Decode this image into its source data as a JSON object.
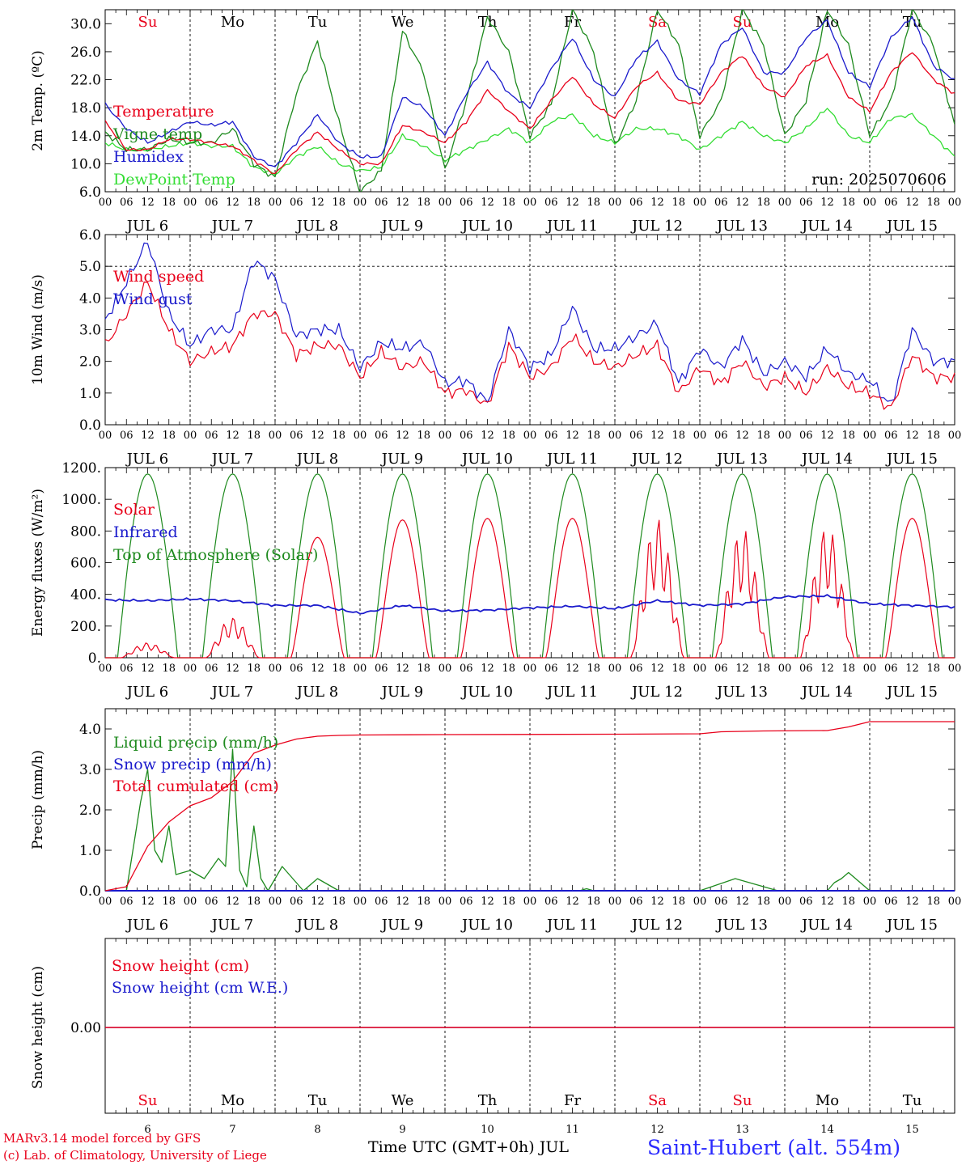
{
  "meta": {
    "run_label": "run: 2025070606",
    "footer_left_1": "MARv3.14 model forced by GFS",
    "footer_left_2": "(c) Lab. of Climatology, University of Liege",
    "footer_mid": "Time UTC (GMT+0h) JUL",
    "station": "Saint-Hubert (alt. 554m)"
  },
  "days": [
    {
      "abbr": "Su",
      "date": "JUL  6",
      "num": "6",
      "weekend": true
    },
    {
      "abbr": "Mo",
      "date": "JUL  7",
      "num": "7",
      "weekend": false
    },
    {
      "abbr": "Tu",
      "date": "JUL  8",
      "num": "8",
      "weekend": false
    },
    {
      "abbr": "We",
      "date": "JUL  9",
      "num": "9",
      "weekend": false
    },
    {
      "abbr": "Th",
      "date": "JUL 10",
      "num": "10",
      "weekend": false
    },
    {
      "abbr": "Fr",
      "date": "JUL 11",
      "num": "11",
      "weekend": false
    },
    {
      "abbr": "Sa",
      "date": "JUL 12",
      "num": "12",
      "weekend": true
    },
    {
      "abbr": "Su",
      "date": "JUL 13",
      "num": "13",
      "weekend": true
    },
    {
      "abbr": "Mo",
      "date": "JUL 14",
      "num": "14",
      "weekend": false
    },
    {
      "abbr": "Tu",
      "date": "JUL 15",
      "num": "15",
      "weekend": false
    }
  ],
  "hour_labels": [
    "00",
    "06",
    "12",
    "18"
  ],
  "colors": {
    "red": "#e8001a",
    "blue": "#1a1acc",
    "darkgreen": "#1e8a1e",
    "lightgreen": "#33dd33",
    "weekend": "#e8001a"
  },
  "chart_data": [
    {
      "type": "line",
      "ylabel": "2m Temp. (ºC)",
      "ylim": [
        6,
        32
      ],
      "yticks": [
        "6.0",
        "10.0",
        "14.0",
        "18.0",
        "22.0",
        "26.0",
        "30.0"
      ],
      "x_unit": "hours since JUL 6 00 UTC",
      "series": [
        {
          "name": "Temperature",
          "color": "red",
          "x": [
            0,
            6,
            12,
            18,
            24,
            30,
            36,
            42,
            48,
            54,
            60,
            66,
            72,
            78,
            84,
            90,
            96,
            102,
            108,
            114,
            120,
            126,
            132,
            138,
            144,
            150,
            156,
            162,
            168,
            174,
            180,
            186,
            192,
            198,
            204,
            210,
            216,
            222,
            228,
            234,
            240
          ],
          "values": [
            16,
            12,
            12,
            13.5,
            13.5,
            13,
            12.5,
            10.5,
            8.5,
            12,
            14.5,
            12,
            10,
            10,
            15.5,
            14.5,
            13,
            16,
            20.5,
            17.5,
            15,
            19,
            22.5,
            18.5,
            16.5,
            21,
            23,
            19,
            18.5,
            23,
            25.5,
            21,
            19.5,
            24,
            25.5,
            19.5,
            17.5,
            23,
            26,
            22,
            20
          ]
        },
        {
          "name": "Vigne temp",
          "color": "darkgreen",
          "x": [
            0,
            6,
            12,
            18,
            24,
            30,
            36,
            42,
            48,
            54,
            60,
            66,
            72,
            78,
            84,
            90,
            96,
            102,
            108,
            114,
            120,
            126,
            132,
            138,
            144,
            150,
            156,
            162,
            168,
            174,
            180,
            186,
            192,
            198,
            204,
            210,
            216,
            222,
            228,
            234,
            240
          ],
          "values": [
            14.5,
            12,
            12,
            13.5,
            13,
            13,
            15,
            10,
            8,
            20,
            27.5,
            16,
            6,
            9,
            29,
            23,
            9,
            19,
            31,
            26,
            14,
            18.5,
            32,
            26,
            12.5,
            19,
            32,
            27,
            14,
            19,
            32,
            27,
            14,
            19,
            32,
            27,
            14,
            19,
            32,
            27,
            15.5
          ]
        },
        {
          "name": "Humidex",
          "color": "blue",
          "x": [
            0,
            6,
            12,
            18,
            24,
            30,
            36,
            42,
            48,
            54,
            60,
            66,
            72,
            78,
            84,
            90,
            96,
            102,
            108,
            114,
            120,
            126,
            132,
            138,
            144,
            150,
            156,
            162,
            168,
            174,
            180,
            186,
            192,
            198,
            204,
            210,
            216,
            222,
            228,
            234,
            240
          ],
          "values": [
            18.5,
            15,
            13,
            14.5,
            16,
            15.5,
            16,
            11,
            9.5,
            13,
            17,
            13,
            11,
            11,
            19.5,
            18,
            14,
            20,
            24.5,
            20,
            18,
            23.5,
            28,
            22,
            19.5,
            25,
            27.5,
            22,
            20,
            27,
            29.5,
            23,
            23,
            28,
            30.5,
            23,
            21,
            28,
            31,
            24,
            22
          ]
        },
        {
          "name": "DewPoint Temp",
          "color": "lightgreen",
          "x": [
            0,
            6,
            12,
            18,
            24,
            30,
            36,
            42,
            48,
            54,
            60,
            66,
            72,
            78,
            84,
            90,
            96,
            102,
            108,
            114,
            120,
            126,
            132,
            138,
            144,
            150,
            156,
            162,
            168,
            174,
            180,
            186,
            192,
            198,
            204,
            210,
            216,
            222,
            228,
            234,
            240
          ],
          "values": [
            13,
            12,
            12,
            12.5,
            13,
            12.5,
            12.5,
            9.5,
            8.5,
            11,
            12.5,
            10,
            9,
            9.5,
            14,
            12.5,
            10.5,
            12,
            13.5,
            15,
            13,
            16,
            17,
            14,
            13,
            15,
            15,
            14,
            12,
            14,
            16,
            14,
            13,
            15,
            18,
            14,
            13,
            16.5,
            17,
            14,
            11
          ]
        }
      ]
    },
    {
      "type": "line",
      "ylabel": "10m Wind (m/s)",
      "ylim": [
        0,
        6
      ],
      "yticks": [
        "0.0",
        "1.0",
        "2.0",
        "3.0",
        "4.0",
        "5.0",
        "6.0"
      ],
      "ref_line": 5,
      "x_unit": "hours since JUL 6 00 UTC",
      "series": [
        {
          "name": "Wind speed",
          "color": "red",
          "x": [
            0,
            6,
            12,
            18,
            24,
            30,
            36,
            42,
            48,
            54,
            60,
            66,
            72,
            78,
            84,
            90,
            96,
            102,
            108,
            114,
            120,
            126,
            132,
            138,
            144,
            150,
            156,
            162,
            168,
            174,
            180,
            186,
            192,
            198,
            204,
            210,
            216,
            222,
            228,
            234,
            240
          ],
          "values": [
            2.5,
            3.5,
            4.5,
            3,
            2,
            2.3,
            2.5,
            3.5,
            3.5,
            2.2,
            2.5,
            2.5,
            1.5,
            2.3,
            1.8,
            2,
            1,
            1.1,
            0.6,
            2.5,
            1.5,
            1.8,
            2.8,
            2,
            1.8,
            2.2,
            2.5,
            1,
            1.8,
            1.3,
            2,
            1.2,
            1.5,
            1,
            1.8,
            1.2,
            1,
            0.5,
            2.2,
            1.5,
            1.5
          ]
        },
        {
          "name": "Wind gust",
          "color": "blue",
          "x": [
            0,
            6,
            12,
            18,
            24,
            30,
            36,
            42,
            48,
            54,
            60,
            66,
            72,
            78,
            84,
            90,
            96,
            102,
            108,
            114,
            120,
            126,
            132,
            138,
            144,
            150,
            156,
            162,
            168,
            174,
            180,
            186,
            192,
            198,
            204,
            210,
            216,
            222,
            228,
            234,
            240
          ],
          "values": [
            3.3,
            4.5,
            5.8,
            3.5,
            2.5,
            3,
            3,
            5.2,
            4.6,
            2.8,
            3,
            3,
            1.8,
            2.6,
            2.4,
            2.6,
            1.3,
            1.4,
            0.7,
            3,
            1.8,
            2.2,
            3.7,
            2.4,
            2.4,
            2.8,
            3.2,
            1.3,
            2.4,
            1.8,
            2.7,
            1.6,
            2,
            1.5,
            2.4,
            1.6,
            1.4,
            0.6,
            3,
            2,
            2
          ]
        }
      ]
    },
    {
      "type": "line",
      "ylabel": "Energy fluxes (W/m²)",
      "ylim": [
        0,
        1200
      ],
      "yticks": [
        "0.",
        "200.",
        "400.",
        "600.",
        "800.",
        "1000.",
        "1200."
      ],
      "x_unit": "hours since JUL 6 00 UTC",
      "toa_peak": 1160,
      "series": [
        {
          "name": "Solar",
          "color": "red",
          "daily_peaks": [
            95,
            255,
            760,
            870,
            880,
            880,
            880,
            820,
            830,
            880
          ]
        },
        {
          "name": "Infrared",
          "color": "blue",
          "x": [
            0,
            12,
            24,
            36,
            48,
            60,
            72,
            84,
            96,
            108,
            120,
            132,
            144,
            156,
            168,
            180,
            192,
            204,
            216,
            228,
            240
          ],
          "values": [
            365,
            360,
            370,
            360,
            330,
            330,
            280,
            330,
            295,
            300,
            315,
            325,
            310,
            360,
            330,
            340,
            385,
            390,
            340,
            330,
            320
          ]
        },
        {
          "name": "Top of Atmosphere (Solar)",
          "color": "darkgreen"
        }
      ]
    },
    {
      "type": "line",
      "ylabel": "Precip (mm/h)",
      "ylim": [
        0,
        4.5
      ],
      "yticks": [
        "0.0",
        "1.0",
        "2.0",
        "3.0",
        "4.0"
      ],
      "x_unit": "hours since JUL 6 00 UTC",
      "series": [
        {
          "name": "Liquid precip (mm/h)",
          "color": "darkgreen",
          "x": [
            0,
            6,
            10,
            12,
            14,
            16,
            18,
            20,
            24,
            28,
            32,
            34,
            36,
            38,
            40,
            42,
            44,
            46,
            50,
            56,
            60,
            66,
            72,
            120,
            134,
            136,
            138,
            150,
            168,
            178,
            190,
            192,
            204,
            206,
            208,
            210,
            212,
            216,
            240
          ],
          "values": [
            0,
            0,
            2.2,
            3,
            1,
            0.7,
            1.6,
            0.4,
            0.5,
            0.3,
            0.8,
            0.6,
            3.5,
            0.5,
            0.1,
            1.6,
            0.3,
            0,
            0.6,
            0,
            0.3,
            0,
            0,
            0,
            0,
            0.05,
            0,
            0,
            0,
            0.3,
            0,
            0,
            0,
            0.2,
            0.3,
            0.45,
            0.3,
            0,
            0
          ]
        },
        {
          "name": "Snow precip (mm/h)",
          "color": "blue",
          "x": [
            0,
            240
          ],
          "values": [
            0,
            0
          ]
        },
        {
          "name": "Total cumulated (cm)",
          "color": "red",
          "x": [
            0,
            6,
            12,
            18,
            24,
            30,
            36,
            42,
            48,
            54,
            60,
            66,
            72,
            96,
            144,
            168,
            174,
            186,
            204,
            210,
            216,
            240
          ],
          "values": [
            0,
            0.1,
            1.1,
            1.7,
            2.1,
            2.3,
            2.7,
            3.4,
            3.6,
            3.75,
            3.82,
            3.84,
            3.85,
            3.86,
            3.87,
            3.88,
            3.93,
            3.95,
            3.96,
            4.05,
            4.18,
            4.18
          ]
        }
      ]
    },
    {
      "type": "line",
      "ylabel": "Snow height (cm)",
      "yticks": [
        "0.00"
      ],
      "x_unit": "hours since JUL 6 00 UTC",
      "series": [
        {
          "name": "Snow height (cm)",
          "color": "red",
          "x": [
            0,
            240
          ],
          "values": [
            0,
            0
          ]
        },
        {
          "name": "Snow height (cm W.E.)",
          "color": "blue",
          "x": [
            0,
            240
          ],
          "values": [
            0,
            0
          ]
        }
      ]
    }
  ]
}
